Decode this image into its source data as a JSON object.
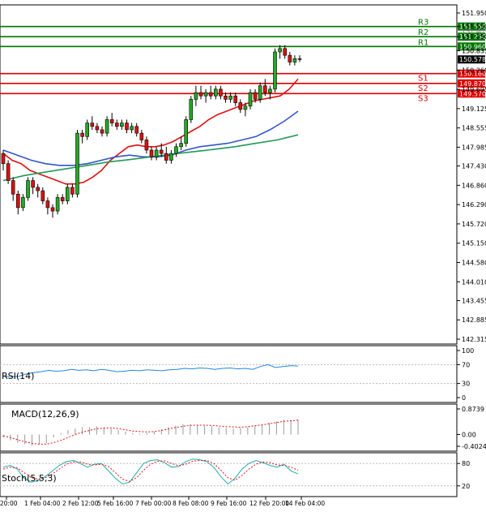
{
  "chart_data": {
    "type": "candlestick",
    "main": {
      "y_ticks": [
        "151.950",
        "151.550",
        "151.250",
        "150.835",
        "150.260",
        "149.695",
        "149.125",
        "148.555",
        "147.985",
        "147.430",
        "146.860",
        "146.290",
        "145.720",
        "145.150",
        "144.580",
        "144.010",
        "143.455",
        "142.885",
        "142.315"
      ],
      "ylim": [
        142.315,
        151.95
      ],
      "pivot_levels": [
        {
          "name": "R3",
          "value": 151.55,
          "value_label": "151.550",
          "color": "#007700"
        },
        {
          "name": "R2",
          "value": 151.25,
          "value_label": "151.250",
          "color": "#007700"
        },
        {
          "name": "R1",
          "value": 150.96,
          "value_label": "150.960",
          "color": "#007700"
        },
        {
          "name": "S1",
          "value": 150.16,
          "value_label": "150.160",
          "color": "#dd0000"
        },
        {
          "name": "S2",
          "value": 149.87,
          "value_label": "149.870",
          "color": "#dd0000"
        },
        {
          "name": "S3",
          "value": 149.57,
          "value_label": "149.570",
          "color": "#dd0000"
        }
      ],
      "last_price": {
        "value": 150.578,
        "label": "150.578"
      },
      "faded_labels": [
        "151.405",
        "150.835"
      ],
      "candles": [
        [
          147.8,
          147.9,
          147.3,
          147.5
        ],
        [
          147.5,
          147.6,
          146.9,
          147.0
        ],
        [
          147.0,
          147.1,
          146.4,
          146.6
        ],
        [
          146.6,
          146.7,
          146.0,
          146.2
        ],
        [
          146.2,
          146.6,
          146.1,
          146.5
        ],
        [
          146.5,
          147.1,
          146.4,
          147.0
        ],
        [
          147.0,
          147.1,
          146.6,
          146.8
        ],
        [
          146.8,
          146.9,
          146.5,
          146.7
        ],
        [
          146.7,
          146.8,
          146.3,
          146.4
        ],
        [
          146.4,
          146.5,
          146.0,
          146.2
        ],
        [
          146.2,
          146.3,
          145.9,
          146.1
        ],
        [
          146.1,
          146.6,
          146.0,
          146.5
        ],
        [
          146.5,
          146.6,
          146.3,
          146.4
        ],
        [
          146.4,
          146.9,
          146.3,
          146.8
        ],
        [
          146.8,
          146.9,
          146.5,
          146.6
        ],
        [
          146.6,
          148.5,
          146.5,
          148.4
        ],
        [
          148.4,
          148.5,
          148.1,
          148.3
        ],
        [
          148.3,
          148.8,
          148.2,
          148.7
        ],
        [
          148.7,
          148.9,
          148.5,
          148.6
        ],
        [
          148.6,
          148.7,
          148.4,
          148.5
        ],
        [
          148.5,
          148.6,
          148.3,
          148.4
        ],
        [
          148.4,
          148.9,
          148.3,
          148.8
        ],
        [
          148.8,
          149.0,
          148.6,
          148.7
        ],
        [
          148.7,
          148.8,
          148.5,
          148.6
        ],
        [
          148.6,
          148.8,
          148.5,
          148.7
        ],
        [
          148.7,
          148.8,
          148.4,
          148.5
        ],
        [
          148.5,
          148.7,
          148.4,
          148.6
        ],
        [
          148.6,
          148.7,
          148.3,
          148.4
        ],
        [
          148.4,
          148.5,
          148.1,
          148.2
        ],
        [
          148.2,
          148.3,
          147.8,
          147.9
        ],
        [
          147.9,
          148.0,
          147.6,
          147.7
        ],
        [
          147.7,
          148.0,
          147.6,
          147.9
        ],
        [
          147.9,
          148.1,
          147.7,
          147.8
        ],
        [
          147.8,
          148.0,
          147.5,
          147.6
        ],
        [
          147.6,
          147.9,
          147.5,
          147.8
        ],
        [
          147.8,
          148.1,
          147.7,
          148.0
        ],
        [
          148.0,
          148.3,
          147.9,
          148.1
        ],
        [
          148.1,
          148.9,
          148.0,
          148.8
        ],
        [
          148.8,
          149.5,
          148.7,
          149.4
        ],
        [
          149.4,
          149.8,
          149.2,
          149.6
        ],
        [
          149.6,
          149.8,
          149.4,
          149.5
        ],
        [
          149.5,
          149.7,
          149.3,
          149.6
        ],
        [
          149.6,
          149.8,
          149.4,
          149.5
        ],
        [
          149.5,
          149.8,
          149.4,
          149.7
        ],
        [
          149.7,
          149.8,
          149.4,
          149.5
        ],
        [
          149.5,
          149.6,
          149.3,
          149.4
        ],
        [
          149.4,
          149.6,
          149.3,
          149.5
        ],
        [
          149.5,
          149.6,
          149.2,
          149.3
        ],
        [
          149.3,
          149.4,
          149.0,
          149.1
        ],
        [
          149.1,
          149.3,
          148.9,
          149.2
        ],
        [
          149.2,
          149.7,
          149.1,
          149.6
        ],
        [
          149.6,
          149.7,
          149.3,
          149.4
        ],
        [
          149.4,
          149.9,
          149.3,
          149.8
        ],
        [
          149.8,
          150.0,
          149.5,
          149.6
        ],
        [
          149.6,
          149.8,
          149.4,
          149.7
        ],
        [
          149.7,
          150.9,
          149.6,
          150.8
        ],
        [
          150.8,
          151.0,
          150.6,
          150.9
        ],
        [
          150.9,
          151.0,
          150.6,
          150.7
        ],
        [
          150.7,
          150.8,
          150.4,
          150.5
        ],
        [
          150.5,
          150.7,
          150.4,
          150.6
        ],
        [
          150.6,
          150.7,
          150.5,
          150.58
        ]
      ],
      "ma_red": [
        147.8,
        147.6,
        147.5,
        147.3,
        147.2,
        147.1,
        147.0,
        146.9,
        146.9,
        146.95,
        147.1,
        147.3,
        147.6,
        147.8,
        148.0,
        148.05,
        148.0,
        148.0,
        148.05,
        148.15,
        148.3,
        148.45,
        148.6,
        148.8,
        148.95,
        149.05,
        149.15,
        149.25,
        149.35,
        149.4,
        149.45,
        149.5,
        149.7,
        150.0
      ],
      "ma_blue": [
        147.9,
        147.75,
        147.6,
        147.5,
        147.45,
        147.45,
        147.5,
        147.6,
        147.7,
        147.75,
        147.7,
        147.7,
        147.75,
        147.9,
        148.0,
        148.05,
        148.1,
        148.2,
        148.3,
        148.5,
        148.75,
        149.05
      ],
      "ma_green": [
        147.0,
        147.15,
        147.25,
        147.35,
        147.45,
        147.55,
        147.62,
        147.7,
        147.78,
        147.85,
        147.92,
        148.0,
        148.1,
        148.2,
        148.35
      ],
      "x_labels": [
        "un 20:00",
        "1 Feb 04:00",
        "2 Feb 12:00",
        "5 Feb 16:00",
        "7 Feb 00:00",
        "8 Feb 08:00",
        "9 Feb 16:00",
        "12 Feb 20:00",
        "14 Feb 04:00"
      ]
    },
    "rsi": {
      "label": "RSI(14)",
      "ticks": [
        "100",
        "70",
        "30",
        "0"
      ],
      "values": [
        46,
        44,
        45,
        50,
        53,
        55,
        58,
        56,
        57,
        60,
        58,
        59,
        57,
        60,
        58,
        55,
        56,
        58,
        57,
        59,
        58,
        57,
        59,
        60,
        62,
        61,
        63,
        62,
        60,
        62,
        63,
        61,
        62,
        60,
        66,
        70,
        64,
        66,
        68,
        67
      ]
    },
    "macd": {
      "label": "MACD(12,26,9)",
      "ticks": [
        "0.8739",
        "0.00",
        "-0.4024"
      ],
      "hist": [
        -0.1,
        -0.2,
        -0.28,
        -0.33,
        -0.38,
        -0.35,
        -0.3,
        -0.1,
        0.05,
        0.15,
        0.2,
        0.25,
        0.25,
        0.28,
        0.25,
        0.2,
        0.15,
        0.1,
        0.05,
        0.03,
        0.05,
        0.1,
        0.18,
        0.25,
        0.3,
        0.35,
        0.35,
        0.33,
        0.3,
        0.28,
        0.25,
        0.22,
        0.2,
        0.22,
        0.25,
        0.3,
        0.35,
        0.4,
        0.45,
        0.5,
        0.5,
        0.5
      ],
      "signal": [
        -0.05,
        -0.1,
        -0.18,
        -0.25,
        -0.3,
        -0.33,
        -0.33,
        -0.28,
        -0.2,
        -0.1,
        0.0,
        0.08,
        0.14,
        0.2,
        0.22,
        0.23,
        0.2,
        0.16,
        0.12,
        0.1,
        0.09,
        0.1,
        0.14,
        0.19,
        0.24,
        0.28,
        0.31,
        0.32,
        0.32,
        0.31,
        0.29,
        0.27,
        0.26,
        0.25,
        0.27,
        0.3,
        0.33,
        0.37,
        0.41,
        0.45,
        0.47,
        0.49
      ]
    },
    "stoch": {
      "label": "Stoch(5,5,3)",
      "ticks": [
        "80",
        "20"
      ],
      "main": [
        70,
        75,
        65,
        40,
        30,
        35,
        45,
        60,
        75,
        85,
        88,
        80,
        70,
        78,
        80,
        60,
        40,
        25,
        30,
        55,
        80,
        88,
        90,
        82,
        70,
        72,
        85,
        92,
        90,
        85,
        70,
        45,
        25,
        40,
        65,
        80,
        88,
        82,
        75,
        70,
        78,
        60,
        52
      ],
      "signal": [
        65,
        70,
        68,
        55,
        42,
        38,
        42,
        52,
        65,
        78,
        84,
        84,
        78,
        76,
        78,
        72,
        55,
        38,
        32,
        42,
        62,
        78,
        86,
        87,
        80,
        74,
        78,
        86,
        88,
        88,
        80,
        62,
        42,
        35,
        48,
        65,
        78,
        84,
        82,
        76,
        75,
        70,
        62
      ]
    }
  }
}
